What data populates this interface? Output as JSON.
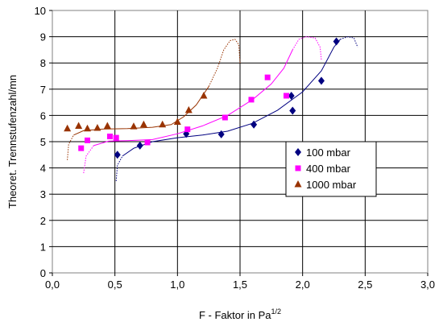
{
  "chart_data": {
    "type": "scatter",
    "xlabel_main": "F - Faktor in Pa",
    "xlabel_sup": "1/2",
    "ylabel": "Theoret. Trennstufenzahl/mn",
    "xlim": [
      0,
      3
    ],
    "ylim": [
      0,
      10
    ],
    "x_ticks": [
      "0,0",
      "0,5",
      "1,0",
      "1,5",
      "2,0",
      "2,5",
      "3,0"
    ],
    "y_ticks": [
      "0",
      "1",
      "2",
      "3",
      "4",
      "5",
      "6",
      "7",
      "8",
      "9",
      "10"
    ],
    "grid": true,
    "legend_position": "right",
    "series": [
      {
        "name": "100 mbar",
        "marker": "diamond",
        "color": "#000080",
        "points": [
          [
            0.52,
            4.5
          ],
          [
            0.7,
            4.85
          ],
          [
            1.07,
            5.3
          ],
          [
            1.35,
            5.28
          ],
          [
            1.61,
            5.65
          ],
          [
            1.91,
            6.75
          ],
          [
            1.92,
            6.18
          ],
          [
            2.15,
            7.32
          ],
          [
            2.27,
            8.82
          ]
        ],
        "trend": [
          [
            0.51,
            3.5
          ],
          [
            0.52,
            4.1
          ],
          [
            0.56,
            4.45
          ],
          [
            0.65,
            4.75
          ],
          [
            0.8,
            5.0
          ],
          [
            1.0,
            5.15
          ],
          [
            1.2,
            5.25
          ],
          [
            1.4,
            5.4
          ],
          [
            1.6,
            5.7
          ],
          [
            1.8,
            6.2
          ],
          [
            2.0,
            6.9
          ],
          [
            2.15,
            7.7
          ],
          [
            2.25,
            8.6
          ],
          [
            2.3,
            8.9
          ],
          [
            2.36,
            9.0
          ],
          [
            2.41,
            8.95
          ],
          [
            2.44,
            8.6
          ]
        ],
        "trend_solid_until": 2.3
      },
      {
        "name": "400 mbar",
        "marker": "square",
        "color": "#ff00ff",
        "points": [
          [
            0.23,
            4.75
          ],
          [
            0.28,
            5.05
          ],
          [
            0.46,
            5.2
          ],
          [
            0.51,
            5.15
          ],
          [
            0.76,
            4.97
          ],
          [
            1.08,
            5.47
          ],
          [
            1.38,
            5.92
          ],
          [
            1.59,
            6.6
          ],
          [
            1.72,
            7.45
          ],
          [
            1.87,
            6.75
          ]
        ],
        "trend": [
          [
            0.25,
            3.8
          ],
          [
            0.27,
            4.45
          ],
          [
            0.33,
            4.85
          ],
          [
            0.45,
            5.02
          ],
          [
            0.6,
            5.04
          ],
          [
            0.8,
            5.08
          ],
          [
            1.0,
            5.3
          ],
          [
            1.2,
            5.6
          ],
          [
            1.4,
            6.0
          ],
          [
            1.6,
            6.6
          ],
          [
            1.75,
            7.2
          ],
          [
            1.85,
            7.8
          ],
          [
            1.92,
            8.5
          ],
          [
            1.97,
            8.9
          ],
          [
            2.03,
            9.0
          ],
          [
            2.1,
            8.95
          ],
          [
            2.14,
            8.6
          ],
          [
            2.15,
            8.1
          ]
        ],
        "trend_solid_until": 1.87
      },
      {
        "name": "1000 mbar",
        "marker": "triangle",
        "color": "#993300",
        "points": [
          [
            0.12,
            5.5
          ],
          [
            0.21,
            5.6
          ],
          [
            0.28,
            5.5
          ],
          [
            0.36,
            5.52
          ],
          [
            0.44,
            5.6
          ],
          [
            0.65,
            5.58
          ],
          [
            0.73,
            5.65
          ],
          [
            0.88,
            5.65
          ],
          [
            1.0,
            5.75
          ],
          [
            1.09,
            6.2
          ],
          [
            1.21,
            6.75
          ]
        ],
        "trend": [
          [
            0.12,
            4.3
          ],
          [
            0.13,
            4.9
          ],
          [
            0.17,
            5.25
          ],
          [
            0.25,
            5.42
          ],
          [
            0.4,
            5.48
          ],
          [
            0.6,
            5.5
          ],
          [
            0.8,
            5.55
          ],
          [
            0.95,
            5.65
          ],
          [
            1.05,
            5.95
          ],
          [
            1.15,
            6.4
          ],
          [
            1.25,
            7.1
          ],
          [
            1.32,
            7.8
          ],
          [
            1.37,
            8.5
          ],
          [
            1.42,
            8.85
          ],
          [
            1.46,
            8.9
          ],
          [
            1.49,
            8.7
          ],
          [
            1.5,
            8.0
          ]
        ],
        "trend_solid_until": 1.21
      }
    ]
  }
}
